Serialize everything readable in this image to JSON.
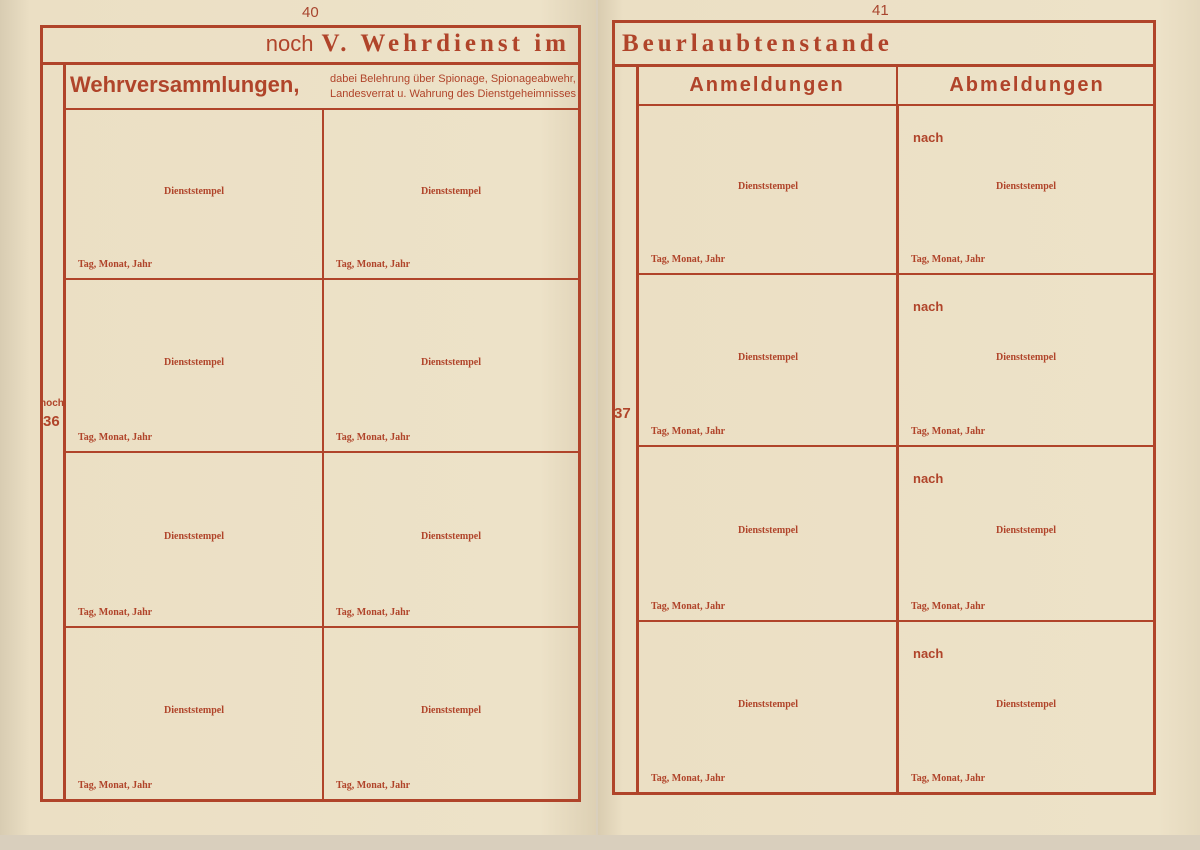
{
  "left_page": {
    "page_number": "40",
    "title_prefix": "noch",
    "title": "V. Wehrdienst im",
    "section_title": "Wehrversammlungen,",
    "section_subtitle_line1": "dabei Belehrung über Spionage, Spionageabwehr,",
    "section_subtitle_line2": "Landesverrat u. Wahrung des Dienstgeheimnisses",
    "row_marker_prefix": "noch",
    "row_marker_number": "36",
    "cells": [
      {
        "stamp": "Dienststempel",
        "date": "Tag, Monat, Jahr"
      },
      {
        "stamp": "Dienststempel",
        "date": "Tag, Monat, Jahr"
      },
      {
        "stamp": "Dienststempel",
        "date": "Tag, Monat, Jahr"
      },
      {
        "stamp": "Dienststempel",
        "date": "Tag, Monat, Jahr"
      },
      {
        "stamp": "Dienststempel",
        "date": "Tag, Monat, Jahr"
      },
      {
        "stamp": "Dienststempel",
        "date": "Tag, Monat, Jahr"
      },
      {
        "stamp": "Dienststempel",
        "date": "Tag, Monat, Jahr"
      },
      {
        "stamp": "Dienststempel",
        "date": "Tag, Monat, Jahr"
      }
    ]
  },
  "right_page": {
    "page_number": "41",
    "title": "Beurlaubtenstande",
    "column_headers": [
      "Anmeldungen",
      "Abmeldungen"
    ],
    "row_marker_number": "37",
    "cells": [
      {
        "stamp": "Dienststempel",
        "date": "Tag, Monat, Jahr"
      },
      {
        "nach": "nach",
        "stamp": "Dienststempel",
        "date": "Tag, Monat, Jahr"
      },
      {
        "stamp": "Dienststempel",
        "date": "Tag, Monat, Jahr"
      },
      {
        "nach": "nach",
        "stamp": "Dienststempel",
        "date": "Tag, Monat, Jahr"
      },
      {
        "stamp": "Dienststempel",
        "date": "Tag, Monat, Jahr"
      },
      {
        "nach": "nach",
        "stamp": "Dienststempel",
        "date": "Tag, Monat, Jahr"
      },
      {
        "stamp": "Dienststempel",
        "date": "Tag, Monat, Jahr"
      },
      {
        "nach": "nach",
        "stamp": "Dienststempel",
        "date": "Tag, Monat, Jahr"
      }
    ]
  },
  "colors": {
    "ink": "#b0442a",
    "paper": "#ebdfc4"
  }
}
